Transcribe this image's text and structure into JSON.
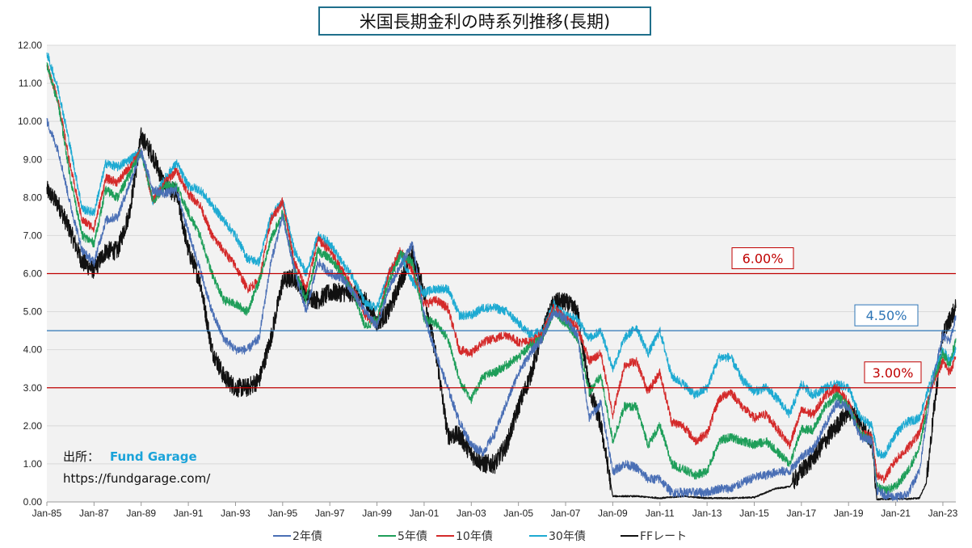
{
  "chart_data": {
    "type": "line",
    "title": "米国長期金利の時系列推移(長期)",
    "ylim": [
      0,
      12
    ],
    "y_ticks": [
      "0.00",
      "1.00",
      "2.00",
      "3.00",
      "4.00",
      "5.00",
      "6.00",
      "7.00",
      "8.00",
      "9.00",
      "10.00",
      "11.00",
      "12.00"
    ],
    "x_ticks": [
      "Jan-85",
      "Jan-87",
      "Jan-89",
      "Jan-91",
      "Jan-93",
      "Jan-95",
      "Jan-97",
      "Jan-99",
      "Jan-01",
      "Jan-03",
      "Jan-05",
      "Jan-07",
      "Jan-09",
      "Jan-11",
      "Jan-13",
      "Jan-15",
      "Jan-17",
      "Jan-19",
      "Jan-21",
      "Jan-23"
    ],
    "x_range": [
      1985.0,
      2023.55
    ],
    "grid": true,
    "legend_position": "bottom",
    "series": [
      {
        "name": "2年債",
        "color": "#4a6fb5",
        "x": [
          1985,
          1985.5,
          1986,
          1986.5,
          1987,
          1987.5,
          1988,
          1989,
          1989.5,
          1990,
          1990.5,
          1991,
          1991.5,
          1992,
          1992.5,
          1993,
          1993.5,
          1994,
          1994.5,
          1995,
          1995.5,
          1996,
          1996.5,
          1997,
          1997.5,
          1998,
          1998.5,
          1999,
          1999.5,
          2000,
          2000.5,
          2001,
          2001.5,
          2002,
          2002.5,
          2003,
          2003.5,
          2004,
          2004.5,
          2005,
          2005.5,
          2006,
          2006.5,
          2007,
          2007.5,
          2008,
          2008.5,
          2009,
          2009.5,
          2010,
          2010.5,
          2011,
          2011.5,
          2012,
          2012.5,
          2013,
          2013.5,
          2014,
          2014.5,
          2015,
          2015.5,
          2016,
          2016.5,
          2017,
          2017.5,
          2018,
          2018.5,
          2019,
          2019.5,
          2020,
          2020.2,
          2020.5,
          2021,
          2021.5,
          2022,
          2022.5,
          2023,
          2023.3,
          2023.55
        ],
        "y": [
          10.0,
          9.2,
          7.8,
          6.6,
          6.3,
          7.4,
          7.5,
          9.2,
          8.2,
          8.1,
          8.2,
          7.1,
          6.1,
          5.0,
          4.3,
          4.0,
          4.0,
          4.3,
          6.3,
          7.5,
          6.1,
          5.0,
          6.3,
          6.0,
          5.9,
          5.5,
          5.0,
          4.6,
          5.6,
          6.2,
          6.8,
          4.9,
          3.9,
          3.0,
          2.1,
          1.5,
          1.3,
          1.8,
          2.6,
          3.4,
          3.9,
          4.3,
          5.0,
          4.8,
          4.4,
          2.2,
          2.6,
          0.8,
          1.0,
          0.9,
          0.6,
          0.6,
          0.25,
          0.25,
          0.25,
          0.25,
          0.35,
          0.35,
          0.5,
          0.65,
          0.7,
          0.8,
          0.8,
          1.2,
          1.4,
          2.0,
          2.6,
          2.5,
          1.7,
          1.6,
          0.3,
          0.2,
          0.12,
          0.2,
          0.8,
          3.0,
          4.4,
          4.2,
          4.9
        ]
      },
      {
        "name": "5年債",
        "color": "#1e9e59",
        "x": [
          1985,
          1985.5,
          1986,
          1986.5,
          1987,
          1987.5,
          1988,
          1989,
          1989.5,
          1990,
          1990.5,
          1991,
          1991.5,
          1992,
          1992.5,
          1993,
          1993.5,
          1994,
          1994.5,
          1995,
          1995.5,
          1996,
          1996.5,
          1997,
          1997.5,
          1998,
          1998.5,
          1999,
          1999.5,
          2000,
          2000.5,
          2001,
          2001.5,
          2002,
          2002.5,
          2003,
          2003.5,
          2004,
          2004.5,
          2005,
          2005.5,
          2006,
          2006.5,
          2007,
          2007.5,
          2008,
          2008.5,
          2009,
          2009.5,
          2010,
          2010.5,
          2011,
          2011.5,
          2012,
          2012.5,
          2013,
          2013.5,
          2014,
          2014.5,
          2015,
          2015.5,
          2016,
          2016.5,
          2017,
          2017.5,
          2018,
          2018.5,
          2019,
          2019.5,
          2020,
          2020.2,
          2020.5,
          2021,
          2021.5,
          2022,
          2022.5,
          2023,
          2023.3,
          2023.55
        ],
        "y": [
          11.5,
          10.4,
          8.5,
          7.0,
          6.8,
          8.2,
          8.0,
          9.2,
          7.9,
          8.3,
          8.3,
          7.6,
          7.0,
          6.0,
          5.3,
          5.2,
          5.0,
          5.8,
          6.9,
          7.6,
          6.1,
          5.3,
          6.6,
          6.4,
          6.0,
          5.5,
          4.6,
          4.8,
          5.8,
          6.5,
          6.3,
          4.8,
          4.7,
          4.3,
          3.2,
          2.7,
          3.3,
          3.4,
          3.6,
          3.8,
          4.1,
          4.3,
          5.0,
          4.7,
          4.3,
          2.9,
          3.3,
          1.6,
          2.5,
          2.5,
          1.5,
          2.0,
          1.0,
          0.85,
          0.7,
          0.8,
          1.6,
          1.7,
          1.6,
          1.5,
          1.6,
          1.3,
          1.0,
          1.9,
          1.9,
          2.5,
          2.8,
          2.5,
          1.8,
          1.6,
          0.4,
          0.3,
          0.4,
          0.8,
          1.4,
          3.0,
          3.9,
          3.6,
          4.3
        ]
      },
      {
        "name": "10年債",
        "color": "#d42a2a",
        "x": [
          1985,
          1985.5,
          1986,
          1986.5,
          1987,
          1987.5,
          1988,
          1989,
          1989.5,
          1990,
          1990.5,
          1991,
          1991.5,
          1992,
          1992.5,
          1993,
          1993.5,
          1994,
          1994.5,
          1995,
          1995.5,
          1996,
          1996.5,
          1997,
          1997.5,
          1998,
          1998.5,
          1999,
          1999.5,
          2000,
          2000.5,
          2001,
          2001.5,
          2002,
          2002.5,
          2003,
          2003.5,
          2004,
          2004.5,
          2005,
          2005.5,
          2006,
          2006.5,
          2007,
          2007.5,
          2008,
          2008.5,
          2009,
          2009.5,
          2010,
          2010.5,
          2011,
          2011.5,
          2012,
          2012.5,
          2013,
          2013.5,
          2014,
          2014.5,
          2015,
          2015.5,
          2016,
          2016.5,
          2017,
          2017.5,
          2018,
          2018.5,
          2019,
          2019.5,
          2020,
          2020.2,
          2020.5,
          2021,
          2021.5,
          2022,
          2022.5,
          2023,
          2023.3,
          2023.55
        ],
        "y": [
          11.5,
          10.5,
          8.8,
          7.4,
          7.2,
          8.5,
          8.4,
          9.2,
          7.9,
          8.4,
          8.7,
          8.1,
          7.8,
          7.0,
          6.6,
          6.2,
          5.6,
          5.8,
          7.4,
          7.9,
          6.3,
          5.6,
          6.9,
          6.6,
          6.1,
          5.6,
          4.9,
          4.7,
          6.0,
          6.6,
          6.1,
          5.2,
          5.3,
          5.1,
          4.0,
          3.9,
          4.2,
          4.3,
          4.4,
          4.2,
          4.2,
          4.4,
          5.1,
          4.8,
          4.6,
          3.7,
          3.9,
          2.3,
          3.6,
          3.7,
          2.9,
          3.4,
          2.1,
          2.0,
          1.6,
          1.8,
          2.7,
          2.9,
          2.5,
          2.2,
          2.3,
          1.9,
          1.5,
          2.4,
          2.3,
          2.8,
          3.0,
          2.6,
          1.8,
          1.7,
          0.7,
          0.6,
          1.1,
          1.4,
          1.8,
          3.0,
          3.7,
          3.4,
          3.8
        ]
      },
      {
        "name": "30年債",
        "color": "#1eaad2",
        "x": [
          1985,
          1985.5,
          1986,
          1986.5,
          1987,
          1987.5,
          1988,
          1989,
          1989.5,
          1990,
          1990.5,
          1991,
          1991.5,
          1992,
          1992.5,
          1993,
          1993.5,
          1994,
          1994.5,
          1995,
          1995.5,
          1996,
          1996.5,
          1997,
          1997.5,
          1998,
          1998.5,
          1999,
          1999.5,
          2000,
          2000.5,
          2001,
          2001.5,
          2002,
          2002.5,
          2003,
          2003.5,
          2004,
          2004.5,
          2005,
          2005.5,
          2006,
          2006.5,
          2007,
          2007.5,
          2008,
          2008.5,
          2009,
          2009.5,
          2010,
          2010.5,
          2011,
          2011.5,
          2012,
          2012.5,
          2013,
          2013.5,
          2014,
          2014.5,
          2015,
          2015.5,
          2016,
          2016.5,
          2017,
          2017.5,
          2018,
          2018.5,
          2019,
          2019.5,
          2020,
          2020.2,
          2020.5,
          2021,
          2021.5,
          2022,
          2022.5,
          2023,
          2023.3,
          2023.55
        ],
        "y": [
          11.8,
          10.8,
          9.3,
          7.7,
          7.6,
          8.9,
          8.8,
          9.2,
          7.9,
          8.5,
          8.9,
          8.3,
          8.2,
          7.8,
          7.4,
          7.0,
          6.4,
          6.3,
          7.5,
          7.9,
          6.6,
          6.0,
          7.0,
          6.8,
          6.3,
          5.9,
          5.2,
          5.1,
          6.0,
          6.5,
          5.8,
          5.5,
          5.6,
          5.6,
          4.9,
          4.9,
          5.1,
          5.1,
          5.0,
          4.7,
          4.4,
          4.5,
          5.2,
          4.9,
          4.8,
          4.3,
          4.5,
          3.5,
          4.3,
          4.6,
          3.9,
          4.5,
          3.3,
          3.1,
          2.8,
          3.0,
          3.8,
          3.8,
          3.2,
          2.9,
          3.0,
          2.7,
          2.3,
          3.1,
          2.8,
          3.0,
          3.1,
          3.0,
          2.2,
          2.0,
          1.3,
          1.2,
          1.8,
          2.1,
          2.2,
          3.2,
          4.0,
          3.7,
          4.0
        ]
      },
      {
        "name": "FFレート",
        "color": "#111111",
        "x": [
          1985,
          1985.5,
          1986,
          1986.5,
          1987,
          1987.5,
          1988,
          1988.5,
          1989,
          1989.5,
          1990,
          1990.5,
          1991,
          1991.5,
          1992,
          1992.5,
          1993,
          1993.5,
          1994,
          1994.5,
          1995,
          1995.5,
          1996,
          1996.5,
          1997,
          1997.5,
          1998,
          1998.5,
          1999,
          1999.5,
          2000,
          2000.5,
          2001,
          2001.3,
          2001.6,
          2002,
          2002.5,
          2003,
          2003.5,
          2004,
          2004.5,
          2005,
          2005.5,
          2006,
          2006.5,
          2007,
          2007.5,
          2008,
          2008.5,
          2009,
          2010,
          2011,
          2012,
          2013,
          2014,
          2015,
          2015.9,
          2016.5,
          2017,
          2017.5,
          2018,
          2018.5,
          2019,
          2019.5,
          2020,
          2020.2,
          2021,
          2021.5,
          2022,
          2022.3,
          2022.6,
          2023,
          2023.3,
          2023.55
        ],
        "y": [
          8.2,
          7.8,
          7.1,
          6.3,
          6.1,
          6.6,
          6.6,
          7.6,
          9.6,
          9.1,
          8.3,
          8.1,
          6.6,
          5.8,
          4.0,
          3.3,
          3.0,
          3.0,
          3.2,
          4.3,
          5.8,
          5.9,
          5.4,
          5.3,
          5.5,
          5.5,
          5.5,
          5.3,
          4.7,
          5.0,
          5.8,
          6.5,
          5.5,
          4.5,
          3.5,
          1.75,
          1.75,
          1.25,
          1.0,
          1.0,
          1.5,
          2.5,
          3.3,
          4.4,
          5.25,
          5.25,
          5.0,
          3.0,
          2.0,
          0.15,
          0.15,
          0.1,
          0.15,
          0.1,
          0.1,
          0.12,
          0.35,
          0.4,
          0.8,
          1.15,
          1.6,
          2.0,
          2.4,
          2.1,
          1.55,
          0.07,
          0.08,
          0.08,
          0.1,
          0.5,
          2.3,
          4.4,
          4.8,
          5.1
        ]
      }
    ],
    "reference_lines": [
      {
        "value": 6.0,
        "label": "6.00%",
        "color": "#c00000"
      },
      {
        "value": 4.5,
        "label": "4.50%",
        "color": "#2e75b6"
      },
      {
        "value": 3.0,
        "label": "3.00%",
        "color": "#c00000"
      }
    ]
  },
  "source": {
    "prefix": "出所：",
    "brand": "Fund Garage",
    "url": "https://fundgarage.com/"
  }
}
